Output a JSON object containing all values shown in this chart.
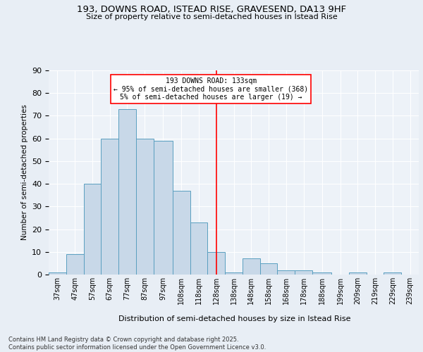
{
  "title1": "193, DOWNS ROAD, ISTEAD RISE, GRAVESEND, DA13 9HF",
  "title2": "Size of property relative to semi-detached houses in Istead Rise",
  "xlabel": "Distribution of semi-detached houses by size in Istead Rise",
  "ylabel": "Number of semi-detached properties",
  "bins": [
    "37sqm",
    "47sqm",
    "57sqm",
    "67sqm",
    "77sqm",
    "87sqm",
    "97sqm",
    "108sqm",
    "118sqm",
    "128sqm",
    "138sqm",
    "148sqm",
    "158sqm",
    "168sqm",
    "178sqm",
    "188sqm",
    "199sqm",
    "209sqm",
    "219sqm",
    "229sqm",
    "239sqm"
  ],
  "values": [
    1,
    9,
    40,
    60,
    73,
    60,
    59,
    37,
    23,
    10,
    1,
    7,
    5,
    2,
    2,
    1,
    0,
    1,
    0,
    1,
    0
  ],
  "bar_color": "#c8d8e8",
  "bar_edge_color": "#5a9fc0",
  "annotation_text": "193 DOWNS ROAD: 133sqm\n← 95% of semi-detached houses are smaller (368)\n5% of semi-detached houses are larger (19) →",
  "vline_x": 133,
  "footer": "Contains HM Land Registry data © Crown copyright and database right 2025.\nContains public sector information licensed under the Open Government Licence v3.0.",
  "ylim": [
    0,
    90
  ],
  "yticks": [
    0,
    10,
    20,
    30,
    40,
    50,
    60,
    70,
    80,
    90
  ],
  "background_color": "#e8eef5",
  "plot_bg_color": "#edf2f8"
}
